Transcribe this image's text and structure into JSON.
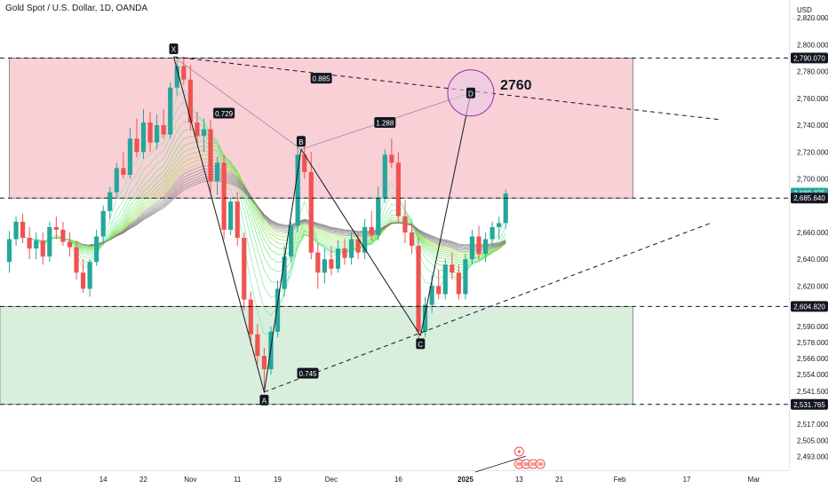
{
  "header": {
    "symbol_title": "Gold Spot / U.S. Dollar, 1D, OANDA"
  },
  "chart_data": {
    "type": "candlestick",
    "currency": "USD",
    "ylim": [
      2484,
      2832
    ],
    "y_ticks": [
      {
        "v": 2820,
        "label": "2,820.000"
      },
      {
        "v": 2800,
        "label": "2,800.000"
      },
      {
        "v": 2780,
        "label": "2,780.000"
      },
      {
        "v": 2760,
        "label": "2,760.000"
      },
      {
        "v": 2740,
        "label": "2,740.000"
      },
      {
        "v": 2720,
        "label": "2,720.000"
      },
      {
        "v": 2700,
        "label": "2,700.000"
      },
      {
        "v": 2660,
        "label": "2,660.000"
      },
      {
        "v": 2640,
        "label": "2,640.000"
      },
      {
        "v": 2620,
        "label": "2,620.000"
      },
      {
        "v": 2590,
        "label": "2,590.000"
      },
      {
        "v": 2578,
        "label": "2,578.000"
      },
      {
        "v": 2566,
        "label": "2,566.000"
      },
      {
        "v": 2554,
        "label": "2,554.000"
      },
      {
        "v": 2541.5,
        "label": "2,541.500"
      },
      {
        "v": 2517,
        "label": "2,517.000"
      },
      {
        "v": 2505,
        "label": "2,505.000"
      },
      {
        "v": 2493,
        "label": "2,493.000"
      }
    ],
    "price_tags": [
      {
        "v": 2790.07,
        "label": "2,790.070",
        "style": "dark"
      },
      {
        "v": 2689.375,
        "label": "2,689.375",
        "style": "green"
      },
      {
        "v": 2685.64,
        "label": "2,685.640",
        "style": "dark"
      },
      {
        "v": 2604.82,
        "label": "2,604.820",
        "style": "dark"
      },
      {
        "v": 2531.765,
        "label": "2,531.765",
        "style": "dark"
      }
    ],
    "x_labels": [
      {
        "i": 4,
        "label": "Oct"
      },
      {
        "i": 14,
        "label": "14"
      },
      {
        "i": 20,
        "label": "22"
      },
      {
        "i": 27,
        "label": "Nov"
      },
      {
        "i": 34,
        "label": "11"
      },
      {
        "i": 40,
        "label": "19"
      },
      {
        "i": 48,
        "label": "Dec"
      },
      {
        "i": 58,
        "label": "16"
      },
      {
        "i": 68,
        "label": "2025"
      },
      {
        "i": 76,
        "label": "13"
      },
      {
        "i": 82,
        "label": "21"
      },
      {
        "i": 91,
        "label": "Feb"
      },
      {
        "i": 101,
        "label": "17"
      },
      {
        "i": 111,
        "label": "Mar"
      }
    ],
    "candles": [
      [
        2638,
        2661,
        2630,
        2655
      ],
      [
        2655,
        2672,
        2650,
        2668
      ],
      [
        2668,
        2674,
        2652,
        2656
      ],
      [
        2656,
        2664,
        2640,
        2648
      ],
      [
        2648,
        2660,
        2640,
        2654
      ],
      [
        2654,
        2660,
        2636,
        2642
      ],
      [
        2642,
        2668,
        2638,
        2664
      ],
      [
        2664,
        2672,
        2655,
        2662
      ],
      [
        2662,
        2668,
        2650,
        2653
      ],
      [
        2653,
        2660,
        2642,
        2649
      ],
      [
        2649,
        2654,
        2625,
        2630
      ],
      [
        2630,
        2640,
        2615,
        2618
      ],
      [
        2618,
        2640,
        2612,
        2638
      ],
      [
        2638,
        2662,
        2635,
        2657
      ],
      [
        2657,
        2680,
        2652,
        2676
      ],
      [
        2676,
        2694,
        2670,
        2690
      ],
      [
        2690,
        2712,
        2686,
        2708
      ],
      [
        2708,
        2720,
        2700,
        2703
      ],
      [
        2703,
        2738,
        2700,
        2730
      ],
      [
        2730,
        2745,
        2716,
        2720
      ],
      [
        2720,
        2752,
        2715,
        2742
      ],
      [
        2742,
        2750,
        2720,
        2727
      ],
      [
        2727,
        2748,
        2722,
        2740
      ],
      [
        2740,
        2752,
        2730,
        2733
      ],
      [
        2733,
        2772,
        2730,
        2768
      ],
      [
        2768,
        2788,
        2762,
        2784
      ],
      [
        2784,
        2791,
        2770,
        2774
      ],
      [
        2774,
        2785,
        2736,
        2742
      ],
      [
        2742,
        2750,
        2725,
        2732
      ],
      [
        2732,
        2745,
        2720,
        2737
      ],
      [
        2737,
        2744,
        2690,
        2698
      ],
      [
        2698,
        2716,
        2688,
        2712
      ],
      [
        2712,
        2718,
        2655,
        2662
      ],
      [
        2662,
        2686,
        2658,
        2683
      ],
      [
        2683,
        2690,
        2650,
        2656
      ],
      [
        2656,
        2660,
        2602,
        2610
      ],
      [
        2610,
        2616,
        2576,
        2584
      ],
      [
        2584,
        2592,
        2562,
        2568
      ],
      [
        2568,
        2574,
        2540,
        2558
      ],
      [
        2558,
        2590,
        2554,
        2586
      ],
      [
        2586,
        2624,
        2582,
        2618
      ],
      [
        2618,
        2650,
        2612,
        2642
      ],
      [
        2642,
        2668,
        2638,
        2665
      ],
      [
        2665,
        2725,
        2660,
        2718
      ],
      [
        2718,
        2724,
        2700,
        2705
      ],
      [
        2705,
        2720,
        2640,
        2645
      ],
      [
        2645,
        2652,
        2618,
        2630
      ],
      [
        2630,
        2648,
        2622,
        2640
      ],
      [
        2640,
        2650,
        2628,
        2633
      ],
      [
        2633,
        2654,
        2630,
        2648
      ],
      [
        2648,
        2655,
        2636,
        2641
      ],
      [
        2641,
        2660,
        2636,
        2655
      ],
      [
        2655,
        2660,
        2640,
        2645
      ],
      [
        2645,
        2670,
        2640,
        2664
      ],
      [
        2664,
        2676,
        2654,
        2658
      ],
      [
        2658,
        2694,
        2654,
        2686
      ],
      [
        2686,
        2722,
        2682,
        2718
      ],
      [
        2718,
        2730,
        2708,
        2712
      ],
      [
        2712,
        2720,
        2668,
        2672
      ],
      [
        2672,
        2684,
        2652,
        2660
      ],
      [
        2660,
        2666,
        2644,
        2650
      ],
      [
        2650,
        2656,
        2578,
        2586
      ],
      [
        2586,
        2612,
        2582,
        2606
      ],
      [
        2606,
        2628,
        2600,
        2620
      ],
      [
        2620,
        2632,
        2610,
        2614
      ],
      [
        2614,
        2640,
        2610,
        2636
      ],
      [
        2636,
        2645,
        2625,
        2630
      ],
      [
        2630,
        2636,
        2610,
        2614
      ],
      [
        2614,
        2644,
        2610,
        2640
      ],
      [
        2640,
        2662,
        2636,
        2657
      ],
      [
        2657,
        2665,
        2640,
        2644
      ],
      [
        2644,
        2660,
        2638,
        2655
      ],
      [
        2655,
        2668,
        2650,
        2664
      ],
      [
        2664,
        2672,
        2655,
        2667
      ],
      [
        2667,
        2692,
        2663,
        2689
      ]
    ],
    "zones": [
      {
        "name": "supply-zone",
        "top": 2790.07,
        "bottom": 2685.64,
        "x_from": 0,
        "x_to": 93,
        "color": "#f8d0d6"
      },
      {
        "name": "demand-zone",
        "top": 2604.82,
        "bottom": 2531.765,
        "x_from": -2,
        "x_to": 93,
        "color": "#d9eedd"
      }
    ],
    "harmonic_pattern": {
      "points": [
        {
          "label": "X",
          "i": 24.5,
          "v": 2791
        },
        {
          "label": "A",
          "i": 38,
          "v": 2541
        },
        {
          "label": "B",
          "i": 43.5,
          "v": 2722
        },
        {
          "label": "C",
          "i": 61.3,
          "v": 2583
        },
        {
          "label": "D",
          "i": 68.8,
          "v": 2764
        }
      ],
      "ratios": [
        {
          "label": "0.729",
          "i": 32,
          "v": 2749
        },
        {
          "label": "0.885",
          "i": 46.5,
          "v": 2775
        },
        {
          "label": "1.288",
          "i": 56,
          "v": 2742
        },
        {
          "label": "0.745",
          "i": 44.5,
          "v": 2555
        }
      ]
    },
    "target": {
      "label": "2760",
      "i": 68.8,
      "v": 2764
    }
  }
}
